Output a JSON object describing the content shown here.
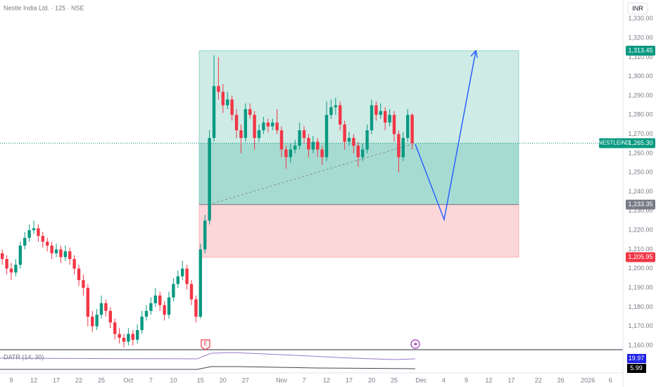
{
  "chart_data": {
    "type": "candlestick",
    "title": "Nestle India Ltd. · 125 · NSE",
    "currency": "INR",
    "symbol": "NESTLEIND",
    "up_color": "#089981",
    "down_color": "#f23645",
    "grid": false,
    "ylim": [
      1157.8,
      1339.8
    ],
    "yticks": [
      {
        "value": 1160,
        "label": "1,160.00"
      },
      {
        "value": 1170,
        "label": "1,170.00"
      },
      {
        "value": 1180,
        "label": "1,180.00"
      },
      {
        "value": 1190,
        "label": "1,190.00"
      },
      {
        "value": 1200,
        "label": "1,200.00"
      },
      {
        "value": 1210,
        "label": "1,210.00"
      },
      {
        "value": 1220,
        "label": "1,220.00"
      },
      {
        "value": 1230,
        "label": "1,230.00"
      },
      {
        "value": 1240,
        "label": "1,240.00"
      },
      {
        "value": 1250,
        "label": "1,250.00"
      },
      {
        "value": 1260,
        "label": "1,260.00"
      },
      {
        "value": 1270,
        "label": "1,270.00"
      },
      {
        "value": 1280,
        "label": "1,280.00"
      },
      {
        "value": 1290,
        "label": "1,290.00"
      },
      {
        "value": 1300,
        "label": "1,300.00"
      },
      {
        "value": 1310,
        "label": "1,310.00"
      },
      {
        "value": 1320,
        "label": "1,320.00"
      },
      {
        "value": 1330,
        "label": "1,330.00"
      }
    ],
    "categories": [
      null,
      null,
      "9",
      null,
      null,
      null,
      null,
      "12",
      null,
      null,
      null,
      null,
      "17",
      null,
      null,
      null,
      null,
      "22",
      null,
      null,
      null,
      null,
      "25",
      null,
      null,
      null,
      null,
      null,
      "Oct",
      null,
      null,
      null,
      null,
      "7",
      null,
      null,
      null,
      null,
      "10",
      null,
      null,
      null,
      null,
      null,
      "15",
      null,
      null,
      null,
      null,
      "20",
      null,
      null,
      null,
      null,
      "27",
      null,
      null,
      null,
      null,
      null,
      null,
      null,
      "Nov",
      null,
      null,
      null,
      null,
      "7",
      null,
      null,
      null,
      null,
      "12",
      null,
      null,
      null,
      null,
      "17",
      null,
      null,
      null,
      null,
      "20",
      null,
      null,
      null,
      null,
      "25",
      null,
      null,
      null,
      null,
      null,
      "Dec",
      null,
      null,
      null,
      null,
      "4",
      null,
      null,
      null,
      null,
      "9",
      null,
      null,
      null,
      null,
      "12",
      null,
      null,
      null,
      null,
      "17",
      null,
      null,
      null,
      null,
      null,
      "22",
      null,
      null,
      null,
      null,
      "26",
      null,
      null,
      null,
      null,
      null,
      "2026",
      null,
      null,
      null,
      null,
      "6",
      null
    ],
    "ohlc": [
      [
        1208,
        1210,
        1202,
        1205
      ],
      [
        1205,
        1207,
        1197,
        1200
      ],
      [
        1200,
        1203,
        1194,
        1198
      ],
      [
        1198,
        1205,
        1196,
        1202
      ],
      [
        1202,
        1214,
        1200,
        1212
      ],
      [
        1212,
        1219,
        1210,
        1216
      ],
      [
        1216,
        1223,
        1214,
        1220
      ],
      [
        1220,
        1225,
        1218,
        1221
      ],
      [
        1221,
        1223,
        1214,
        1217
      ],
      [
        1217,
        1219,
        1211,
        1214
      ],
      [
        1214,
        1216,
        1209,
        1212
      ],
      [
        1212,
        1214,
        1205,
        1208
      ],
      [
        1208,
        1213,
        1206,
        1210
      ],
      [
        1210,
        1212,
        1203,
        1206
      ],
      [
        1206,
        1212,
        1204,
        1209
      ],
      [
        1209,
        1211,
        1202,
        1205
      ],
      [
        1205,
        1207,
        1197,
        1200
      ],
      [
        1200,
        1202,
        1191,
        1194
      ],
      [
        1194,
        1197,
        1186,
        1190
      ],
      [
        1190,
        1192,
        1170,
        1175
      ],
      [
        1175,
        1178,
        1167,
        1170
      ],
      [
        1170,
        1179,
        1168,
        1176
      ],
      [
        1176,
        1186,
        1174,
        1182
      ],
      [
        1182,
        1184,
        1175,
        1178
      ],
      [
        1178,
        1180,
        1169,
        1172
      ],
      [
        1172,
        1174,
        1163,
        1166
      ],
      [
        1166,
        1169,
        1161,
        1164
      ],
      [
        1164,
        1166,
        1159,
        1162
      ],
      [
        1162,
        1169,
        1160,
        1166
      ],
      [
        1166,
        1168,
        1160,
        1163
      ],
      [
        1163,
        1171,
        1161,
        1168
      ],
      [
        1168,
        1178,
        1166,
        1175
      ],
      [
        1175,
        1181,
        1173,
        1178
      ],
      [
        1178,
        1185,
        1176,
        1182
      ],
      [
        1182,
        1190,
        1180,
        1186
      ],
      [
        1186,
        1188,
        1178,
        1181
      ],
      [
        1181,
        1183,
        1173,
        1176
      ],
      [
        1176,
        1188,
        1174,
        1185
      ],
      [
        1185,
        1195,
        1183,
        1192
      ],
      [
        1192,
        1199,
        1190,
        1196
      ],
      [
        1196,
        1204,
        1194,
        1200
      ],
      [
        1200,
        1202,
        1189,
        1192
      ],
      [
        1192,
        1194,
        1181,
        1184
      ],
      [
        1184,
        1186,
        1172,
        1175
      ],
      [
        1175,
        1213,
        1174,
        1210
      ],
      [
        1210,
        1228,
        1208,
        1225
      ],
      [
        1225,
        1272,
        1223,
        1268
      ],
      [
        1268,
        1311,
        1266,
        1295
      ],
      [
        1295,
        1310,
        1288,
        1292
      ],
      [
        1292,
        1296,
        1281,
        1285
      ],
      [
        1285,
        1292,
        1283,
        1288
      ],
      [
        1288,
        1290,
        1277,
        1280
      ],
      [
        1280,
        1283,
        1268,
        1272
      ],
      [
        1272,
        1275,
        1260,
        1268
      ],
      [
        1268,
        1286,
        1266,
        1283
      ],
      [
        1283,
        1286,
        1278,
        1280
      ],
      [
        1280,
        1282,
        1262,
        1268
      ],
      [
        1268,
        1275,
        1266,
        1272
      ],
      [
        1272,
        1279,
        1270,
        1276
      ],
      [
        1276,
        1278,
        1271,
        1274
      ],
      [
        1274,
        1278,
        1272,
        1276
      ],
      [
        1276,
        1283,
        1270,
        1272
      ],
      [
        1272,
        1274,
        1258,
        1262
      ],
      [
        1262,
        1264,
        1252,
        1258
      ],
      [
        1258,
        1265,
        1255,
        1262
      ],
      [
        1262,
        1267,
        1260,
        1264
      ],
      [
        1264,
        1276,
        1262,
        1272
      ],
      [
        1272,
        1274,
        1265,
        1268
      ],
      [
        1268,
        1270,
        1258,
        1262
      ],
      [
        1262,
        1269,
        1260,
        1266
      ],
      [
        1266,
        1268,
        1258,
        1262
      ],
      [
        1262,
        1264,
        1254,
        1258
      ],
      [
        1258,
        1287,
        1256,
        1280
      ],
      [
        1280,
        1288,
        1278,
        1284
      ],
      [
        1284,
        1289,
        1280,
        1285
      ],
      [
        1285,
        1287,
        1272,
        1275
      ],
      [
        1275,
        1277,
        1262,
        1266
      ],
      [
        1266,
        1271,
        1264,
        1268
      ],
      [
        1268,
        1270,
        1260,
        1264
      ],
      [
        1264,
        1266,
        1253,
        1258
      ],
      [
        1258,
        1265,
        1256,
        1262
      ],
      [
        1262,
        1275,
        1260,
        1272
      ],
      [
        1272,
        1288,
        1270,
        1285
      ],
      [
        1285,
        1287,
        1277,
        1280
      ],
      [
        1280,
        1286,
        1278,
        1282
      ],
      [
        1282,
        1284,
        1272,
        1276
      ],
      [
        1276,
        1283,
        1274,
        1280
      ],
      [
        1280,
        1282,
        1266,
        1270
      ],
      [
        1270,
        1272,
        1250,
        1258
      ],
      [
        1258,
        1271,
        1256,
        1268
      ],
      [
        1268,
        1283,
        1266,
        1280
      ],
      [
        1280,
        1281,
        1262,
        1265.3
      ],
      null,
      null,
      null,
      null,
      null,
      null,
      null,
      null,
      null,
      null,
      null,
      null,
      null,
      null,
      null,
      null,
      null,
      null,
      null,
      null,
      null,
      null,
      null,
      null,
      null,
      null,
      null,
      null,
      null,
      null,
      null,
      null,
      null,
      null,
      null,
      null,
      null,
      null,
      null,
      null,
      null,
      null,
      null,
      null,
      null
    ],
    "last_price": {
      "value": 1265.3,
      "label": "1,265.30"
    },
    "position": {
      "target": {
        "value": 1313.45,
        "label": "1,313.45"
      },
      "entry": {
        "value": 1233.35,
        "label": "1,233.35"
      },
      "stop": {
        "value": 1205.95,
        "label": "1,205.95"
      }
    },
    "indicator": {
      "label": "DATR (14, 30)",
      "value_labels": [
        "19.97",
        "5.99"
      ]
    }
  }
}
